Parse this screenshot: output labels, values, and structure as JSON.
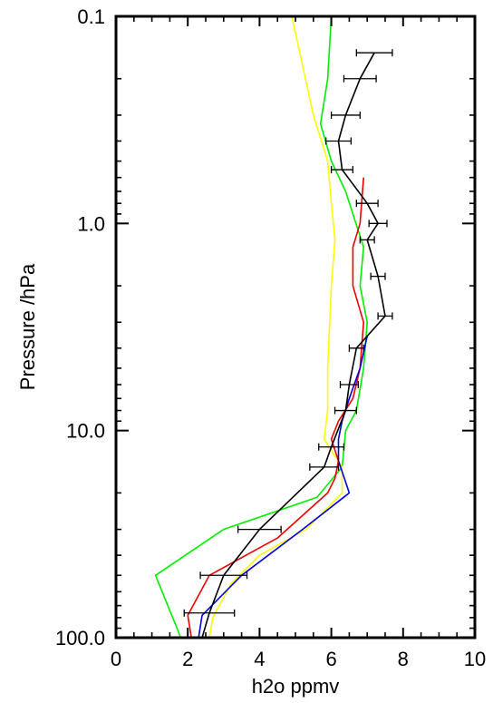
{
  "chart_data": {
    "type": "line",
    "title": "",
    "xlabel": "h2o ppmv",
    "ylabel": "Pressure /hPa",
    "xlim": [
      0,
      10
    ],
    "ylim": [
      100.0,
      0.1
    ],
    "yscale": "log",
    "grid": false,
    "legend": "none",
    "x_ticks": [
      0,
      2,
      4,
      6,
      8,
      10
    ],
    "x_tick_labels": [
      "0",
      "2",
      "4",
      "6",
      "8",
      "10"
    ],
    "y_ticks": [
      0.1,
      1.0,
      10.0,
      100.0
    ],
    "y_tick_labels": [
      "0.1",
      "1.0",
      "10.0",
      "100.0"
    ],
    "series": [
      {
        "color": "#00ee00",
        "points": [
          [
            6.0,
            0.1
          ],
          [
            5.9,
            0.2
          ],
          [
            5.7,
            0.33
          ],
          [
            6.0,
            0.5
          ],
          [
            6.4,
            0.7
          ],
          [
            6.6,
            0.9
          ],
          [
            6.9,
            1.3
          ],
          [
            6.8,
            2.0
          ],
          [
            7.0,
            3.0
          ],
          [
            6.9,
            5.0
          ],
          [
            6.7,
            8.0
          ],
          [
            6.4,
            10.0
          ],
          [
            6.3,
            15.0
          ],
          [
            5.6,
            21.0
          ],
          [
            3.0,
            30.0
          ],
          [
            1.1,
            50.0
          ],
          [
            1.7,
            90.0
          ],
          [
            1.8,
            100.0
          ]
        ]
      },
      {
        "color": "#ffff00",
        "points": [
          [
            4.9,
            0.1
          ],
          [
            5.5,
            0.3
          ],
          [
            5.9,
            0.5
          ],
          [
            6.0,
            0.8
          ],
          [
            6.1,
            1.2
          ],
          [
            6.0,
            2.0
          ],
          [
            5.9,
            5.0
          ],
          [
            5.9,
            8.0
          ],
          [
            5.8,
            11.0
          ],
          [
            6.3,
            15.0
          ],
          [
            6.3,
            20.0
          ],
          [
            5.3,
            30.0
          ],
          [
            4.0,
            40.0
          ],
          [
            3.2,
            55.0
          ],
          [
            2.7,
            80.0
          ],
          [
            2.6,
            100.0
          ]
        ]
      },
      {
        "color": "#ee0000",
        "points": [
          [
            6.9,
            0.6
          ],
          [
            6.8,
            1.0
          ],
          [
            6.6,
            1.3
          ],
          [
            6.6,
            2.0
          ],
          [
            6.9,
            3.0
          ],
          [
            6.8,
            5.0
          ],
          [
            6.6,
            7.0
          ],
          [
            6.2,
            9.0
          ],
          [
            6.0,
            11.0
          ],
          [
            6.2,
            14.0
          ],
          [
            6.1,
            17.0
          ],
          [
            5.9,
            20.0
          ],
          [
            4.5,
            33.0
          ],
          [
            2.6,
            50.0
          ],
          [
            2.0,
            78.0
          ],
          [
            2.1,
            100.0
          ]
        ]
      },
      {
        "color": "#0000dd",
        "points": [
          [
            7.0,
            3.5
          ],
          [
            6.8,
            5.0
          ],
          [
            6.5,
            7.0
          ],
          [
            6.3,
            9.0
          ],
          [
            6.2,
            11.0
          ],
          [
            6.2,
            14.0
          ],
          [
            6.5,
            20.0
          ],
          [
            5.2,
            30.0
          ],
          [
            3.5,
            50.0
          ],
          [
            2.4,
            78.0
          ],
          [
            2.3,
            100.0
          ]
        ]
      },
      {
        "color": "#000000",
        "points": [
          [
            7.2,
            0.15
          ],
          [
            6.8,
            0.2
          ],
          [
            6.4,
            0.3
          ],
          [
            6.2,
            0.4
          ],
          [
            6.3,
            0.55
          ],
          [
            7.0,
            0.8
          ],
          [
            7.3,
            1.0
          ],
          [
            7.0,
            1.2
          ],
          [
            7.3,
            1.8
          ],
          [
            7.5,
            2.8
          ],
          [
            6.7,
            4.0
          ],
          [
            6.5,
            6.0
          ],
          [
            6.4,
            8.0
          ],
          [
            6.0,
            12.0
          ],
          [
            5.8,
            15.0
          ],
          [
            4.0,
            30.0
          ],
          [
            3.0,
            50.0
          ],
          [
            2.6,
            76.0
          ],
          [
            2.4,
            100.0
          ]
        ]
      }
    ],
    "error_bars": [
      {
        "y": 0.15,
        "x": 7.2,
        "xerr": 0.5
      },
      {
        "y": 0.2,
        "x": 6.8,
        "xerr": 0.45
      },
      {
        "y": 0.3,
        "x": 6.4,
        "xerr": 0.4
      },
      {
        "y": 0.4,
        "x": 6.2,
        "xerr": 0.35
      },
      {
        "y": 0.55,
        "x": 6.3,
        "xerr": 0.3
      },
      {
        "y": 0.8,
        "x": 7.0,
        "xerr": 0.3
      },
      {
        "y": 1.0,
        "x": 7.3,
        "xerr": 0.25
      },
      {
        "y": 1.2,
        "x": 7.0,
        "xerr": 0.2
      },
      {
        "y": 1.8,
        "x": 7.3,
        "xerr": 0.2
      },
      {
        "y": 2.8,
        "x": 7.5,
        "xerr": 0.2
      },
      {
        "y": 4.0,
        "x": 6.7,
        "xerr": 0.2
      },
      {
        "y": 6.0,
        "x": 6.5,
        "xerr": 0.25
      },
      {
        "y": 8.0,
        "x": 6.4,
        "xerr": 0.3
      },
      {
        "y": 12.0,
        "x": 6.0,
        "xerr": 0.35
      },
      {
        "y": 15.0,
        "x": 5.8,
        "xerr": 0.4
      },
      {
        "y": 30.0,
        "x": 4.0,
        "xerr": 0.6
      },
      {
        "y": 50.0,
        "x": 3.0,
        "xerr": 0.65
      },
      {
        "y": 76.0,
        "x": 2.6,
        "xerr": 0.7
      }
    ]
  }
}
